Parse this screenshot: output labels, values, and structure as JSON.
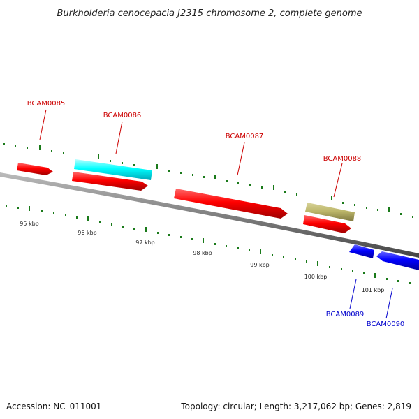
{
  "title": "Burkholderia cenocepacia J2315 chromosome 2, complete genome",
  "footer": {
    "accession": "Accession: NC_011001",
    "summary": "Topology: circular; Length: 3,217,062 bp; Genes: 2,819"
  },
  "colors": {
    "forward_cds": "#ff0000",
    "reverse_cds": "#0000ff",
    "highlight": "#00ffff",
    "other_feature": "#bdb76b",
    "backbone": "#808080",
    "ticks": "#1a7a1a"
  },
  "genes": [
    {
      "label": "BCAM0085",
      "color": "#cc0000"
    },
    {
      "label": "BCAM0086",
      "color": "#cc0000"
    },
    {
      "label": "BCAM0087",
      "color": "#cc0000"
    },
    {
      "label": "BCAM0088",
      "color": "#cc0000"
    },
    {
      "label": "BCAM0089",
      "color": "#0000cc"
    },
    {
      "label": "BCAM0090",
      "color": "#0000cc"
    }
  ],
  "scale_labels": [
    "95 kbp",
    "96 kbp",
    "97 kbp",
    "98 kbp",
    "99 kbp",
    "100 kbp",
    "101 kbp"
  ]
}
